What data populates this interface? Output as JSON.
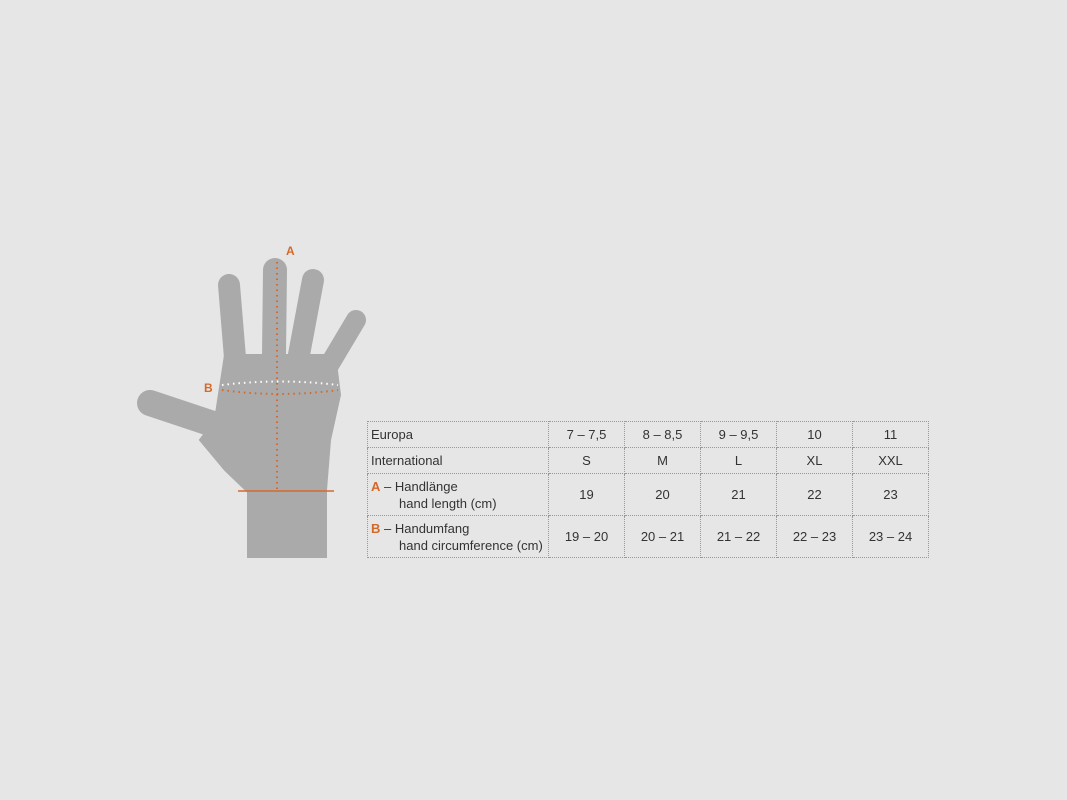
{
  "colors": {
    "background": "#e6e6e6",
    "hand": "#aaaaaa",
    "accent": "#d4692a"
  },
  "diagram": {
    "label_a": "A",
    "label_b": "B"
  },
  "table": {
    "rows": [
      {
        "label": "Europa",
        "values": [
          "7 – 7,5",
          "8 – 8,5",
          "9 – 9,5",
          "10",
          "11"
        ]
      },
      {
        "label": "International",
        "values": [
          "S",
          "M",
          "L",
          "XL",
          "XXL"
        ]
      },
      {
        "marker": "A",
        "label": "– Handlänge",
        "sublabel": "hand length (cm)",
        "values": [
          "19",
          "20",
          "21",
          "22",
          "23"
        ]
      },
      {
        "marker": "B",
        "label": "– Handumfang",
        "sublabel": "hand circumference (cm)",
        "values": [
          "19 – 20",
          "20 – 21",
          "21 – 22",
          "22 – 23",
          "23 – 24"
        ]
      }
    ]
  }
}
